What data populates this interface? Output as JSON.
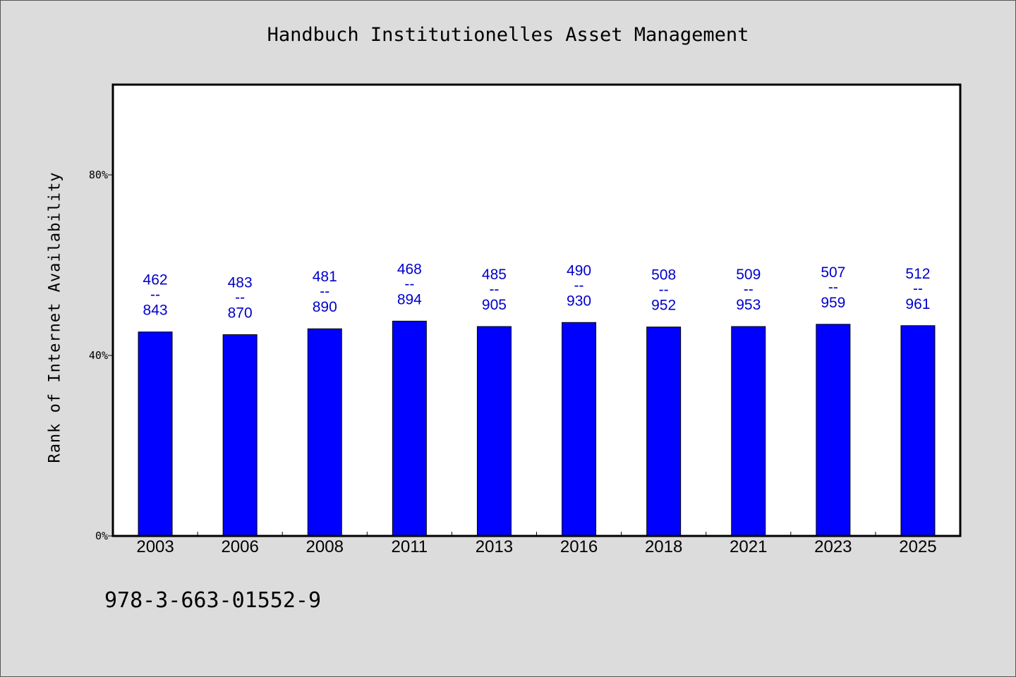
{
  "chart_data": {
    "type": "bar",
    "title": "Handbuch Institutionelles Asset Management",
    "ylabel": "Rank of Internet Availability",
    "xlabel": "",
    "categories": [
      "2003",
      "2006",
      "2008",
      "2011",
      "2013",
      "2016",
      "2018",
      "2021",
      "2023",
      "2025"
    ],
    "values": [
      45.2,
      44.6,
      45.9,
      47.6,
      46.4,
      47.3,
      46.3,
      46.4,
      46.9,
      46.6
    ],
    "data_labels": [
      {
        "top": "462",
        "sep": "--",
        "bottom": "843"
      },
      {
        "top": "483",
        "sep": "--",
        "bottom": "870"
      },
      {
        "top": "481",
        "sep": "--",
        "bottom": "890"
      },
      {
        "top": "468",
        "sep": "--",
        "bottom": "894"
      },
      {
        "top": "485",
        "sep": "--",
        "bottom": "905"
      },
      {
        "top": "490",
        "sep": "--",
        "bottom": "930"
      },
      {
        "top": "508",
        "sep": "--",
        "bottom": "952"
      },
      {
        "top": "509",
        "sep": "--",
        "bottom": "953"
      },
      {
        "top": "507",
        "sep": "--",
        "bottom": "959"
      },
      {
        "top": "512",
        "sep": "--",
        "bottom": "961"
      }
    ],
    "ylim": [
      0,
      100
    ],
    "yticks": [
      0,
      40,
      80
    ],
    "ytick_labels": [
      "0%",
      "40%",
      "80%"
    ],
    "grid": false,
    "bar_color": "#0000ff",
    "label_color": "#0000cc"
  },
  "footer": {
    "isbn": "978-3-663-01552-9"
  }
}
